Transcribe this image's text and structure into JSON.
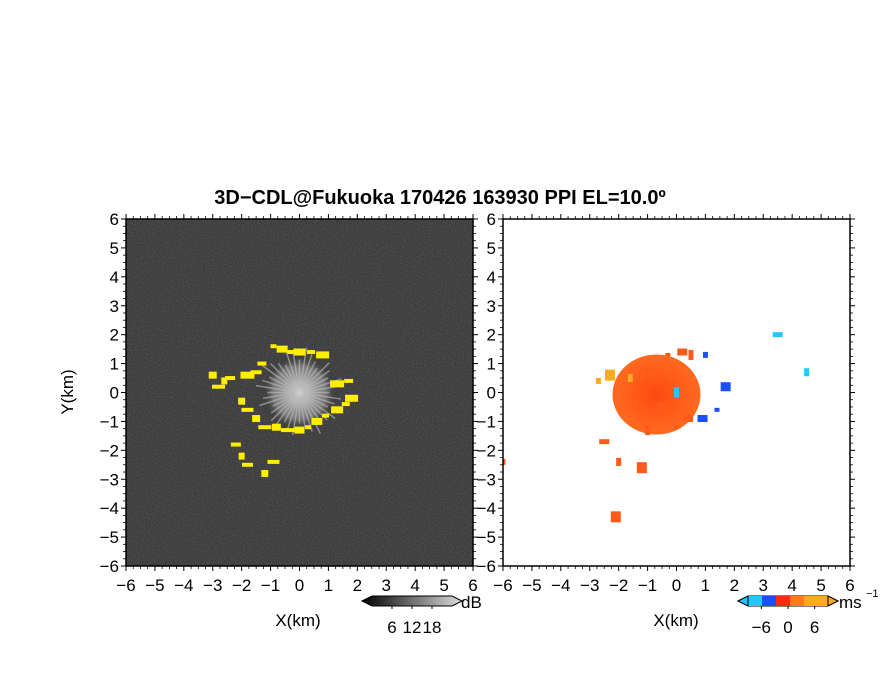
{
  "title": "3D−CDL@Fukuoka 170426 163930 PPI EL=10.0º",
  "colors": {
    "background": "#ffffff",
    "reflectivity_background": "#2a2a2a",
    "reflectivity_echo": "#ffee00",
    "velocity_approaching": "#1a4fff",
    "velocity_near_zero": "#22c8ff",
    "velocity_receding": "#ff5a1a",
    "velocity_high": "#ffaa22"
  },
  "chart_data": [
    {
      "type": "heatmap",
      "panel": "reflectivity",
      "xlabel": "X(km)",
      "ylabel": "Y(km)",
      "xlim": [
        -6,
        6
      ],
      "ylim": [
        -6,
        6
      ],
      "x_ticks": [
        "−6",
        "−5",
        "−4",
        "−3",
        "−2",
        "−1",
        "0",
        "1",
        "2",
        "3",
        "4",
        "5",
        "6"
      ],
      "y_ticks": [
        "6",
        "5",
        "4",
        "3",
        "2",
        "1",
        "0",
        "−1",
        "−2",
        "−3",
        "−4",
        "−5",
        "−6"
      ],
      "colorbar": {
        "unit": "dB",
        "ticks": [
          "6",
          "12",
          "18"
        ],
        "range": [
          0,
          24
        ]
      },
      "echo_points": [
        [
          -0.9,
          1.6
        ],
        [
          -0.6,
          1.5
        ],
        [
          -0.3,
          1.4
        ],
        [
          0.0,
          1.4
        ],
        [
          0.4,
          1.4
        ],
        [
          0.8,
          1.3
        ],
        [
          -1.3,
          1.0
        ],
        [
          -1.8,
          0.6
        ],
        [
          -2.4,
          0.5
        ],
        [
          -2.6,
          0.4
        ],
        [
          -1.5,
          0.7
        ],
        [
          -2.0,
          -0.3
        ],
        [
          -1.8,
          -0.6
        ],
        [
          -1.5,
          -0.9
        ],
        [
          -1.2,
          -1.2
        ],
        [
          -0.8,
          -1.2
        ],
        [
          -0.4,
          -1.3
        ],
        [
          0.0,
          -1.3
        ],
        [
          0.3,
          -1.2
        ],
        [
          0.6,
          -1.0
        ],
        [
          0.9,
          -0.8
        ],
        [
          1.3,
          -0.6
        ],
        [
          1.6,
          -0.4
        ],
        [
          1.8,
          -0.2
        ],
        [
          1.7,
          0.4
        ],
        [
          1.3,
          0.3
        ],
        [
          -2.2,
          -1.8
        ],
        [
          -2.0,
          -2.2
        ],
        [
          -1.8,
          -2.5
        ],
        [
          -1.2,
          -2.8
        ],
        [
          -0.9,
          -2.4
        ],
        [
          -3.0,
          0.6
        ],
        [
          -2.8,
          0.2
        ]
      ]
    },
    {
      "type": "heatmap",
      "panel": "velocity",
      "xlabel": "X(km)",
      "xlim": [
        -6,
        6
      ],
      "ylim": [
        -6,
        6
      ],
      "x_ticks": [
        "−6",
        "−5",
        "−4",
        "−3",
        "−2",
        "−1",
        "0",
        "1",
        "2",
        "3",
        "4",
        "5",
        "6"
      ],
      "y_ticks": [
        "6",
        "5",
        "4",
        "3",
        "2",
        "1",
        "0",
        "−1",
        "−2",
        "−3",
        "−4",
        "−5",
        "−6"
      ],
      "colorbar": {
        "unit": "ms",
        "unit_exponent": "−1",
        "ticks": [
          "−6",
          "0",
          "6"
        ],
        "range": [
          -9,
          9
        ]
      },
      "velocity_points": [
        [
          -0.3,
          1.3,
          3
        ],
        [
          0.2,
          1.4,
          3
        ],
        [
          0.5,
          1.3,
          4
        ],
        [
          -1.0,
          0.8,
          4
        ],
        [
          -1.6,
          0.5,
          5
        ],
        [
          -2.3,
          0.6,
          6
        ],
        [
          -2.7,
          0.4,
          6
        ],
        [
          -0.5,
          -0.5,
          3
        ],
        [
          0.0,
          -1.2,
          3
        ],
        [
          0.4,
          -0.9,
          3
        ],
        [
          -1.0,
          -1.3,
          4
        ],
        [
          -2.5,
          -1.7,
          3
        ],
        [
          -2.0,
          -2.4,
          3
        ],
        [
          -1.2,
          -2.6,
          3
        ],
        [
          1.0,
          1.3,
          -5
        ],
        [
          1.7,
          0.2,
          -6
        ],
        [
          1.4,
          -0.6,
          -6
        ],
        [
          0.9,
          -0.9,
          -6
        ],
        [
          0.0,
          0.0,
          -1
        ],
        [
          3.5,
          2.0,
          -2
        ],
        [
          4.5,
          0.7,
          -1
        ],
        [
          -2.1,
          -4.3,
          3
        ],
        [
          -6.0,
          -2.4,
          3
        ]
      ]
    }
  ]
}
